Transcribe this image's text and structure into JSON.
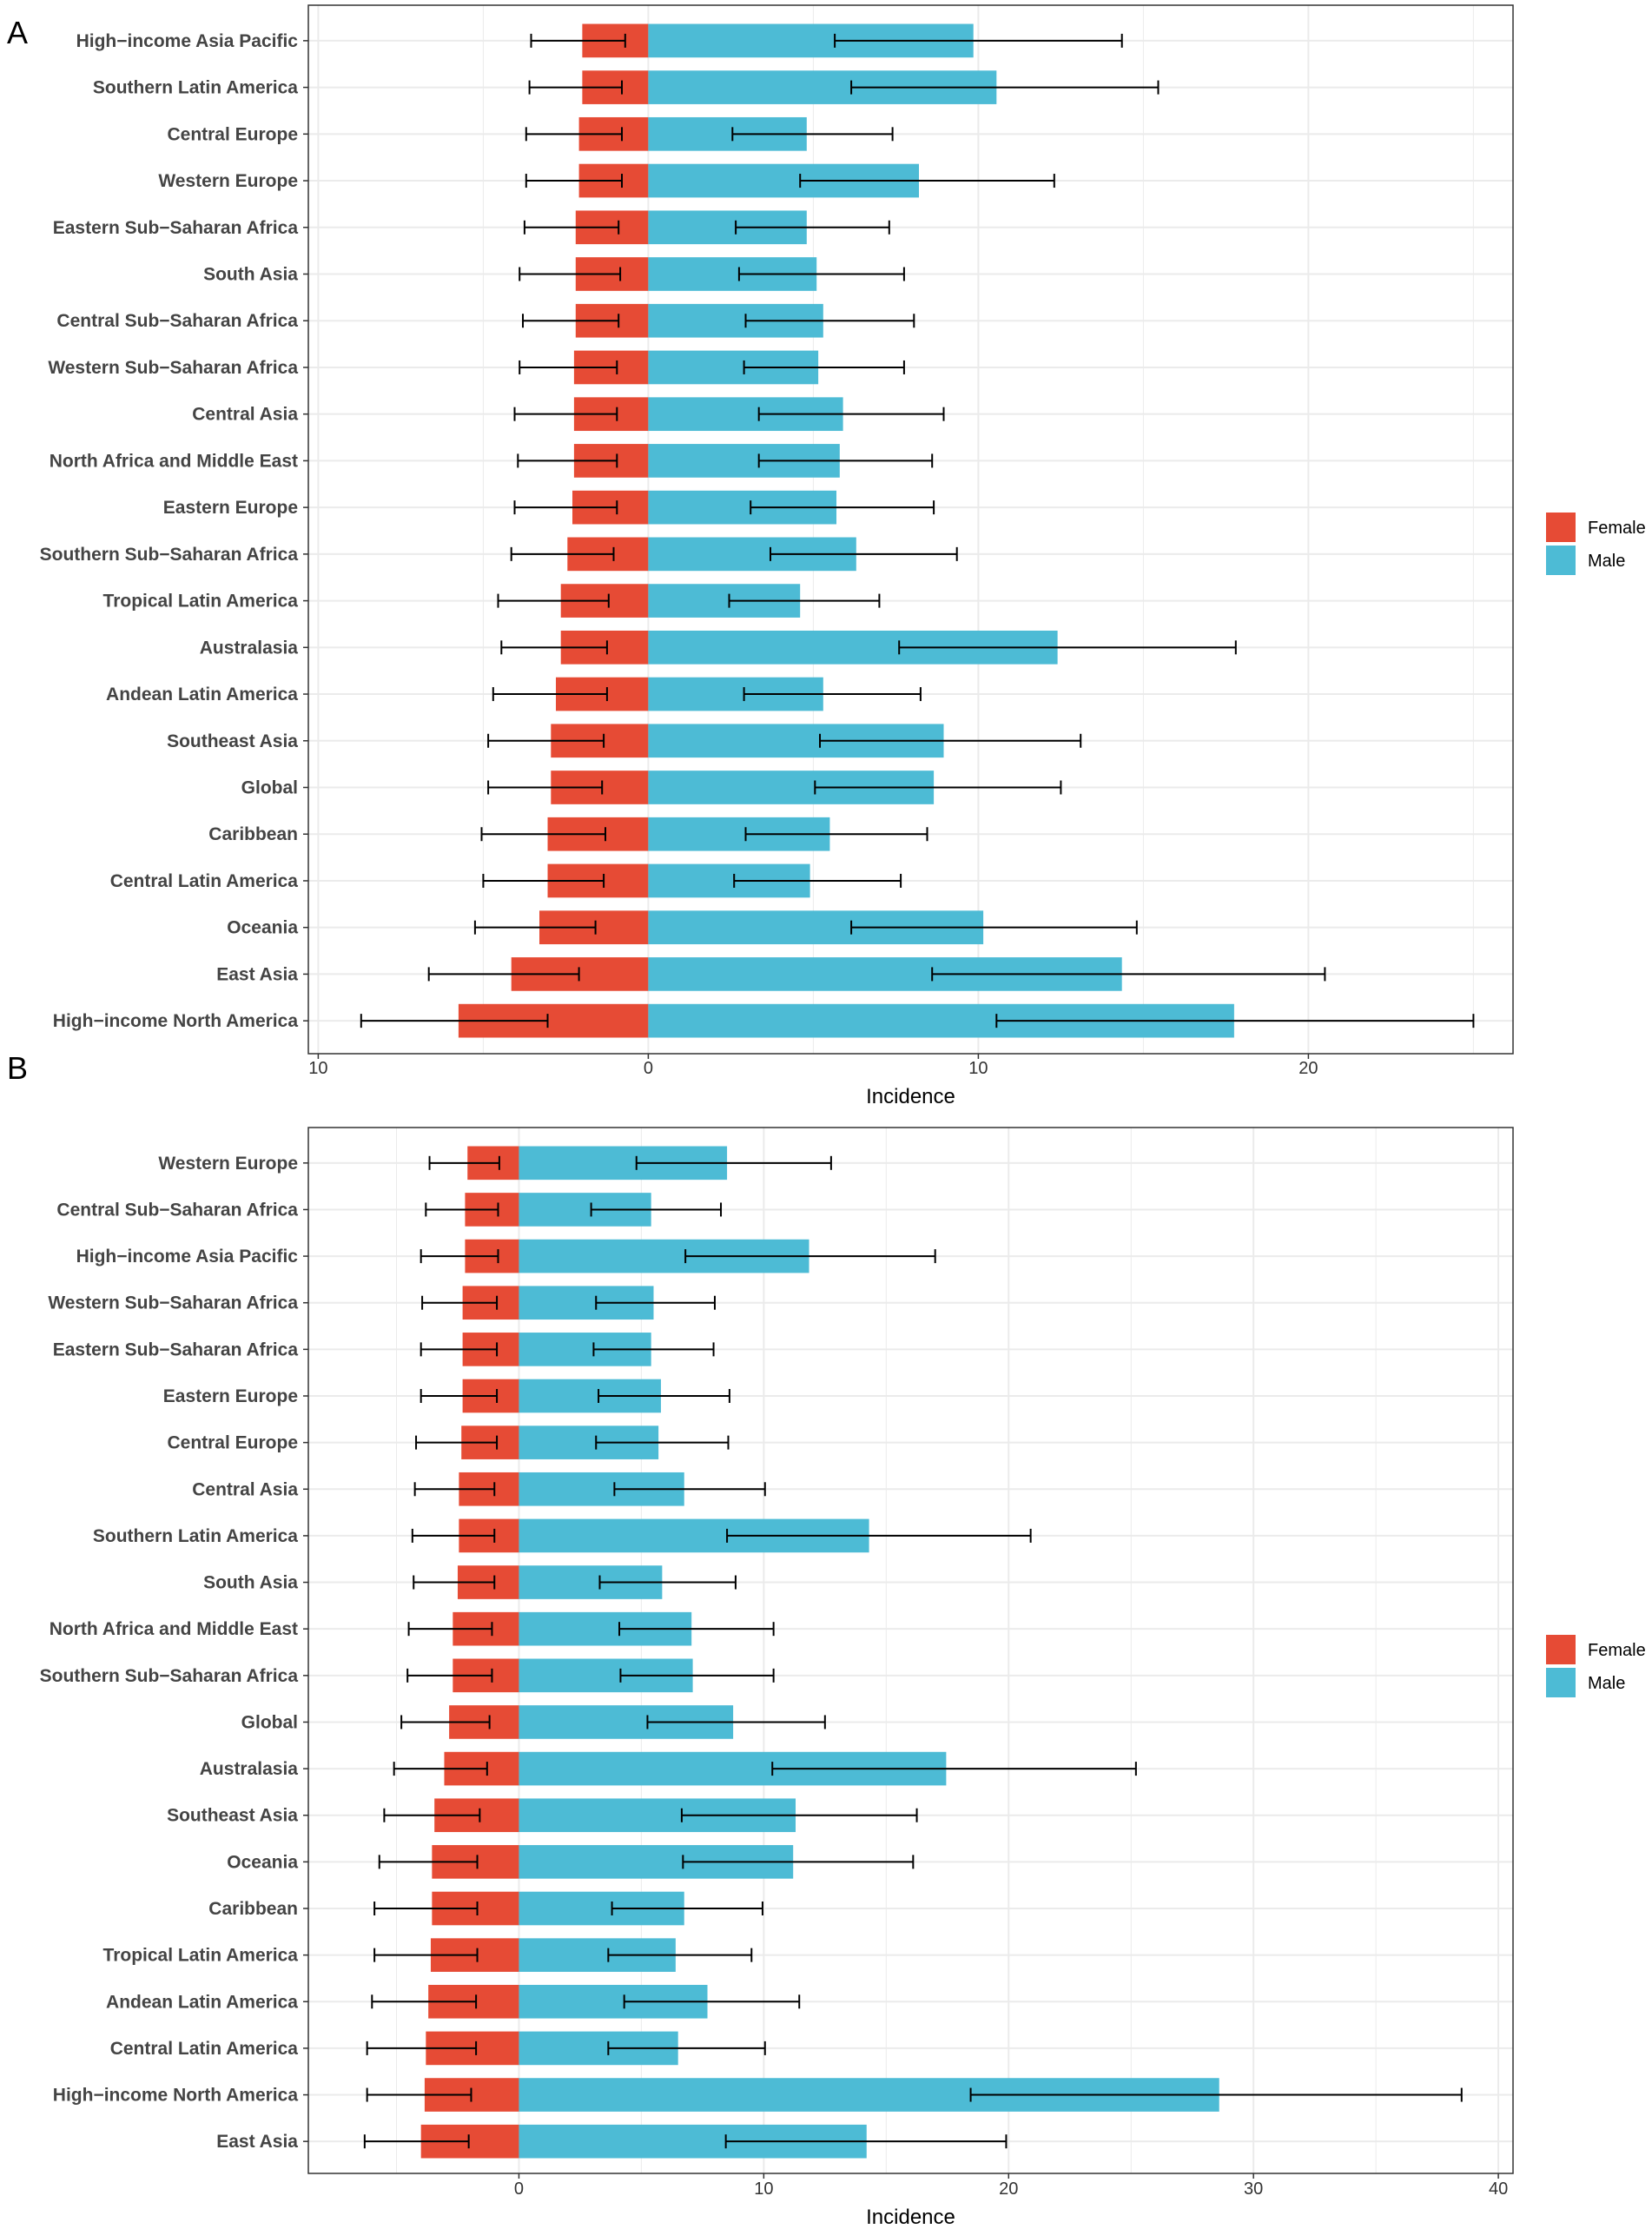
{
  "colors": {
    "female": "#E64B35",
    "male": "#4DBBD5",
    "grid": "#EBEBEB",
    "border": "#333333"
  },
  "legend": {
    "female": "Female",
    "male": "Male"
  },
  "chart_data": [
    {
      "panel": "A",
      "type": "bar",
      "orientation": "horizontal",
      "xlabel": "Incidence",
      "xlim": [
        -10.3,
        26.2
      ],
      "xticks": [
        -10,
        0,
        10,
        20
      ],
      "xtick_labels": [
        "10",
        "0",
        "10",
        "20"
      ],
      "categories": [
        "High−income Asia Pacific",
        "Southern Latin America",
        "Central Europe",
        "Western Europe",
        "Eastern Sub−Saharan Africa",
        "South Asia",
        "Central Sub−Saharan Africa",
        "Western Sub−Saharan Africa",
        "Central Asia",
        "North Africa and Middle East",
        "Eastern Europe",
        "Southern Sub−Saharan Africa",
        "Tropical Latin America",
        "Australasia",
        "Andean Latin America",
        "Southeast Asia",
        "Global",
        "Caribbean",
        "Central Latin America",
        "Oceania",
        "East Asia",
        "High−income North America"
      ],
      "series": [
        {
          "name": "Female",
          "values": [
            -2.0,
            -2.0,
            -2.1,
            -2.1,
            -2.2,
            -2.2,
            -2.2,
            -2.25,
            -2.25,
            -2.25,
            -2.3,
            -2.45,
            -2.65,
            -2.65,
            -2.8,
            -2.95,
            -2.95,
            -3.05,
            -3.05,
            -3.3,
            -4.15,
            -5.75
          ],
          "lower": [
            -3.55,
            -3.6,
            -3.7,
            -3.7,
            -3.75,
            -3.9,
            -3.8,
            -3.9,
            -4.05,
            -3.95,
            -4.05,
            -4.15,
            -4.55,
            -4.45,
            -4.7,
            -4.85,
            -4.85,
            -5.05,
            -5.0,
            -5.25,
            -6.65,
            -8.7
          ],
          "upper": [
            -0.7,
            -0.8,
            -0.8,
            -0.8,
            -0.9,
            -0.85,
            -0.9,
            -0.95,
            -0.95,
            -0.95,
            -0.95,
            -1.05,
            -1.2,
            -1.25,
            -1.25,
            -1.35,
            -1.4,
            -1.3,
            -1.35,
            -1.6,
            -2.1,
            -3.05
          ]
        },
        {
          "name": "Male",
          "values": [
            9.85,
            10.55,
            4.8,
            8.2,
            4.8,
            5.1,
            5.3,
            5.15,
            5.9,
            5.8,
            5.7,
            6.3,
            4.6,
            12.4,
            5.3,
            8.95,
            8.65,
            5.5,
            4.9,
            10.15,
            14.35,
            17.75
          ],
          "lower": [
            5.65,
            6.15,
            2.55,
            4.6,
            2.65,
            2.75,
            2.95,
            2.9,
            3.35,
            3.35,
            3.1,
            3.7,
            2.45,
            7.6,
            2.9,
            5.2,
            5.05,
            2.95,
            2.6,
            6.15,
            8.6,
            10.55
          ],
          "upper": [
            14.35,
            15.45,
            7.4,
            12.3,
            7.3,
            7.75,
            8.05,
            7.75,
            8.95,
            8.6,
            8.65,
            9.35,
            7.0,
            17.8,
            8.25,
            13.1,
            12.5,
            8.45,
            7.65,
            14.8,
            20.5,
            25.0
          ]
        }
      ]
    },
    {
      "panel": "B",
      "type": "bar",
      "orientation": "horizontal",
      "xlabel": "Incidence",
      "xlim": [
        -8.6,
        40.6
      ],
      "xticks": [
        0,
        10,
        20,
        30,
        40
      ],
      "xtick_labels": [
        "0",
        "10",
        "20",
        "30",
        "40"
      ],
      "categories": [
        "Western Europe",
        "Central Sub−Saharan Africa",
        "High−income Asia Pacific",
        "Western Sub−Saharan Africa",
        "Eastern Sub−Saharan Africa",
        "Eastern Europe",
        "Central Europe",
        "Central Asia",
        "Southern Latin America",
        "South Asia",
        "North Africa and Middle East",
        "Southern Sub−Saharan Africa",
        "Global",
        "Australasia",
        "Southeast Asia",
        "Oceania",
        "Caribbean",
        "Tropical Latin America",
        "Andean Latin America",
        "Central Latin America",
        "High−income North America",
        "East Asia"
      ],
      "series": [
        {
          "name": "Female",
          "values": [
            -2.1,
            -2.2,
            -2.2,
            -2.3,
            -2.3,
            -2.3,
            -2.35,
            -2.45,
            -2.45,
            -2.5,
            -2.7,
            -2.7,
            -2.85,
            -3.05,
            -3.45,
            -3.55,
            -3.55,
            -3.6,
            -3.7,
            -3.8,
            -3.85,
            -4.0
          ],
          "lower": [
            -3.65,
            -3.8,
            -4.0,
            -3.95,
            -4.0,
            -4.0,
            -4.2,
            -4.25,
            -4.35,
            -4.3,
            -4.5,
            -4.55,
            -4.8,
            -5.1,
            -5.5,
            -5.7,
            -5.9,
            -5.9,
            -6.0,
            -6.2,
            -6.2,
            -6.3
          ],
          "upper": [
            -0.8,
            -0.85,
            -0.85,
            -0.9,
            -0.9,
            -0.9,
            -0.9,
            -1.0,
            -1.0,
            -1.0,
            -1.1,
            -1.1,
            -1.2,
            -1.3,
            -1.6,
            -1.7,
            -1.7,
            -1.7,
            -1.75,
            -1.75,
            -1.95,
            -2.05
          ]
        },
        {
          "name": "Male",
          "values": [
            8.5,
            5.4,
            11.85,
            5.5,
            5.4,
            5.8,
            5.7,
            6.75,
            14.3,
            5.85,
            7.05,
            7.1,
            8.75,
            17.45,
            11.3,
            11.2,
            6.75,
            6.4,
            7.7,
            6.5,
            28.6,
            14.2
          ],
          "lower": [
            4.8,
            2.95,
            6.8,
            3.15,
            3.05,
            3.25,
            3.15,
            3.9,
            8.5,
            3.3,
            4.1,
            4.15,
            5.25,
            10.35,
            6.65,
            6.7,
            3.8,
            3.65,
            4.3,
            3.65,
            18.45,
            8.45
          ],
          "upper": [
            12.75,
            8.25,
            17.0,
            8.0,
            7.95,
            8.6,
            8.55,
            10.05,
            20.9,
            8.85,
            10.4,
            10.4,
            12.5,
            25.2,
            16.25,
            16.1,
            9.95,
            9.5,
            11.45,
            10.05,
            38.5,
            19.9
          ]
        }
      ]
    }
  ]
}
